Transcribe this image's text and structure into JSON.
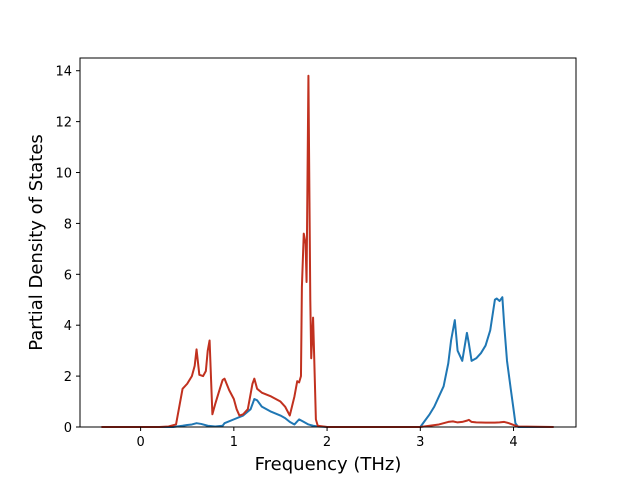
{
  "chart_data": {
    "type": "line",
    "title": "",
    "xlabel": "Frequency (THz)",
    "ylabel": "Partial Density of States",
    "xlim": [
      -0.65,
      4.67
    ],
    "ylim": [
      0,
      14.5
    ],
    "xticks": [
      0,
      1,
      2,
      3,
      4
    ],
    "yticks": [
      0,
      2,
      4,
      6,
      8,
      10,
      12,
      14
    ],
    "grid": false,
    "legend": "none",
    "series": [
      {
        "color": "#1f77b4",
        "x": [
          -0.42,
          0.35,
          0.45,
          0.5,
          0.55,
          0.6,
          0.65,
          0.72,
          0.8,
          0.88,
          0.9,
          1.0,
          1.1,
          1.18,
          1.22,
          1.25,
          1.3,
          1.4,
          1.5,
          1.55,
          1.6,
          1.65,
          1.7,
          1.75,
          1.8,
          1.85,
          1.9,
          2.0,
          3.0,
          3.05,
          3.1,
          3.15,
          3.2,
          3.25,
          3.3,
          3.33,
          3.37,
          3.4,
          3.45,
          3.5,
          3.52,
          3.55,
          3.6,
          3.65,
          3.7,
          3.75,
          3.8,
          3.82,
          3.85,
          3.88,
          3.9,
          3.93,
          3.97,
          4.0,
          4.02,
          4.05,
          4.43
        ],
        "values": [
          0,
          0,
          0.05,
          0.08,
          0.1,
          0.15,
          0.12,
          0.05,
          0.02,
          0.05,
          0.15,
          0.3,
          0.45,
          0.7,
          1.1,
          1.05,
          0.8,
          0.6,
          0.45,
          0.35,
          0.2,
          0.1,
          0.3,
          0.2,
          0.1,
          0.05,
          0.02,
          0,
          0,
          0.25,
          0.5,
          0.8,
          1.2,
          1.6,
          2.5,
          3.4,
          4.2,
          3.0,
          2.6,
          3.7,
          3.3,
          2.6,
          2.7,
          2.9,
          3.2,
          3.8,
          5.0,
          5.05,
          4.95,
          5.1,
          4.0,
          2.6,
          1.5,
          0.7,
          0.15,
          0,
          0
        ]
      },
      {
        "color": "#c1311f",
        "x": [
          -0.42,
          0.2,
          0.3,
          0.38,
          0.42,
          0.45,
          0.5,
          0.55,
          0.58,
          0.6,
          0.63,
          0.67,
          0.7,
          0.72,
          0.74,
          0.77,
          0.8,
          0.85,
          0.88,
          0.9,
          0.95,
          1.0,
          1.03,
          1.06,
          1.1,
          1.15,
          1.2,
          1.22,
          1.25,
          1.3,
          1.4,
          1.5,
          1.55,
          1.6,
          1.65,
          1.68,
          1.7,
          1.72,
          1.73,
          1.75,
          1.77,
          1.78,
          1.8,
          1.82,
          1.83,
          1.85,
          1.86,
          1.88,
          1.9,
          2.0,
          3.0,
          3.1,
          3.2,
          3.3,
          3.35,
          3.4,
          3.45,
          3.5,
          3.52,
          3.55,
          3.6,
          3.7,
          3.8,
          3.85,
          3.9,
          3.95,
          4.0,
          4.05,
          4.43
        ],
        "values": [
          0,
          0,
          0.02,
          0.1,
          0.9,
          1.5,
          1.7,
          2.0,
          2.4,
          3.05,
          2.05,
          2.0,
          2.2,
          3.0,
          3.4,
          0.5,
          0.9,
          1.5,
          1.85,
          1.9,
          1.45,
          1.1,
          0.7,
          0.45,
          0.5,
          0.7,
          1.7,
          1.9,
          1.5,
          1.35,
          1.2,
          1.0,
          0.8,
          0.45,
          1.2,
          1.8,
          1.75,
          2.0,
          5.5,
          7.6,
          7.2,
          5.7,
          13.8,
          5.0,
          2.7,
          4.3,
          3.0,
          0.3,
          0.05,
          0,
          0,
          0.05,
          0.1,
          0.2,
          0.22,
          0.18,
          0.2,
          0.25,
          0.28,
          0.2,
          0.18,
          0.17,
          0.17,
          0.18,
          0.2,
          0.15,
          0.08,
          0.02,
          0
        ]
      }
    ]
  }
}
